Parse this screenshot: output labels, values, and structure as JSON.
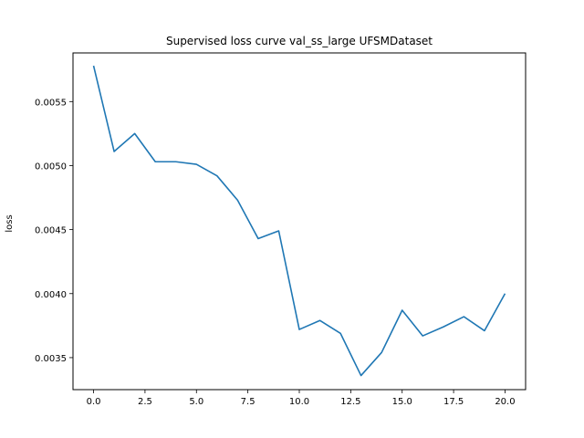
{
  "chart_data": {
    "type": "line",
    "title": "Supervised loss curve val_ss_large UFSMDataset",
    "xlabel": "",
    "ylabel": "loss",
    "xlim": [
      -1.0,
      21.0
    ],
    "ylim": [
      0.00325,
      0.00588
    ],
    "xticks": [
      0.0,
      2.5,
      5.0,
      7.5,
      10.0,
      12.5,
      15.0,
      17.5,
      20.0
    ],
    "xtick_labels": [
      "0.0",
      "2.5",
      "5.0",
      "7.5",
      "10.0",
      "12.5",
      "15.0",
      "17.5",
      "20.0"
    ],
    "yticks": [
      0.0035,
      0.004,
      0.0045,
      0.005,
      0.0055
    ],
    "ytick_labels": [
      "0.0035",
      "0.0040",
      "0.0045",
      "0.0050",
      "0.0055"
    ],
    "grid": false,
    "color": "#1f77b4",
    "series": [
      {
        "x": [
          0,
          1,
          2,
          3,
          4,
          5,
          6,
          7,
          8,
          9,
          10,
          11,
          12,
          13,
          14,
          15,
          16,
          17,
          18,
          19,
          20
        ],
        "values": [
          0.00578,
          0.00511,
          0.00525,
          0.00503,
          0.00503,
          0.00501,
          0.00492,
          0.00473,
          0.00443,
          0.00449,
          0.00372,
          0.00379,
          0.00369,
          0.00336,
          0.00354,
          0.00387,
          0.00367,
          0.00374,
          0.00382,
          0.00371,
          0.004
        ]
      }
    ]
  }
}
